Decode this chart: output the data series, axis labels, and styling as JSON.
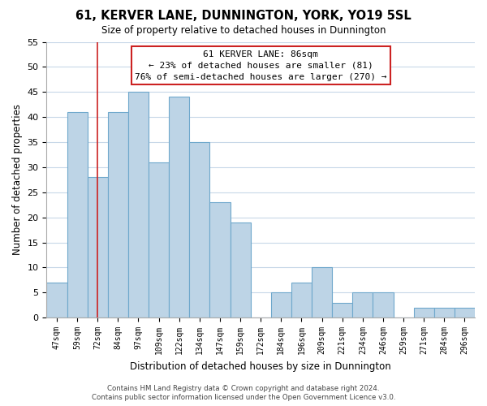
{
  "title": "61, KERVER LANE, DUNNINGTON, YORK, YO19 5SL",
  "subtitle": "Size of property relative to detached houses in Dunnington",
  "xlabel": "Distribution of detached houses by size in Dunnington",
  "ylabel": "Number of detached properties",
  "footer_line1": "Contains HM Land Registry data © Crown copyright and database right 2024.",
  "footer_line2": "Contains public sector information licensed under the Open Government Licence v3.0.",
  "bar_labels": [
    "47sqm",
    "59sqm",
    "72sqm",
    "84sqm",
    "97sqm",
    "109sqm",
    "122sqm",
    "134sqm",
    "147sqm",
    "159sqm",
    "172sqm",
    "184sqm",
    "196sqm",
    "209sqm",
    "221sqm",
    "234sqm",
    "246sqm",
    "259sqm",
    "271sqm",
    "284sqm",
    "296sqm"
  ],
  "bar_values": [
    7,
    41,
    28,
    41,
    45,
    31,
    44,
    35,
    23,
    19,
    0,
    5,
    7,
    10,
    3,
    5,
    5,
    0,
    2,
    2,
    2
  ],
  "bar_color": "#bdd4e6",
  "bar_edge_color": "#6fa8cc",
  "highlight_bar_index": 2,
  "highlight_line_color": "#cc2222",
  "ylim": [
    0,
    55
  ],
  "yticks": [
    0,
    5,
    10,
    15,
    20,
    25,
    30,
    35,
    40,
    45,
    50,
    55
  ],
  "annotation_title": "61 KERVER LANE: 86sqm",
  "annotation_line1": "← 23% of detached houses are smaller (81)",
  "annotation_line2": "76% of semi-detached houses are larger (270) →",
  "background_color": "#ffffff",
  "grid_color": "#c8d8e8"
}
